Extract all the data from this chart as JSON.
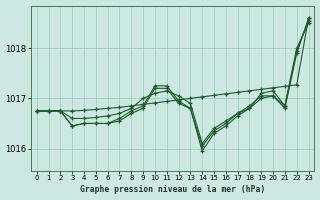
{
  "background_color": "#cce8e0",
  "grid_color": "#99ccbb",
  "line_color": "#1a5c2a",
  "title": "Graphe pression niveau de la mer (hPa)",
  "xlim": [
    -0.5,
    23.5
  ],
  "ylim": [
    1015.55,
    1018.85
  ],
  "yticks": [
    1016,
    1017,
    1018
  ],
  "xticks": [
    0,
    1,
    2,
    3,
    4,
    5,
    6,
    7,
    8,
    9,
    10,
    11,
    12,
    13,
    14,
    15,
    16,
    17,
    18,
    19,
    20,
    21,
    22,
    23
  ],
  "series": [
    [
      1016.75,
      1016.75,
      1016.75,
      1016.45,
      1016.5,
      1016.5,
      1016.5,
      1016.6,
      1016.75,
      1016.85,
      1017.25,
      1017.25,
      1016.95,
      1016.8,
      1016.05,
      1016.35,
      1016.5,
      1016.7,
      1016.85,
      1017.05,
      1017.05,
      1016.85,
      1017.95,
      1018.55
    ],
    [
      1016.75,
      1016.75,
      1016.75,
      1016.45,
      1016.5,
      1016.5,
      1016.5,
      1016.55,
      1016.7,
      1016.8,
      1017.2,
      1017.2,
      1016.9,
      1016.8,
      1015.95,
      1016.3,
      1016.45,
      1016.65,
      1016.8,
      1017.0,
      1017.05,
      1016.8,
      1017.9,
      1018.6
    ],
    [
      1016.75,
      1016.75,
      1016.75,
      1016.6,
      1016.6,
      1016.62,
      1016.65,
      1016.7,
      1016.8,
      1017.0,
      1017.1,
      1017.15,
      1017.05,
      1016.9,
      1016.1,
      1016.4,
      1016.55,
      1016.7,
      1016.8,
      1017.1,
      1017.15,
      1016.85,
      1018.0,
      1018.5
    ],
    [
      1016.75,
      1016.75,
      1016.75,
      1016.75,
      1016.76,
      1016.78,
      1016.8,
      1016.82,
      1016.85,
      1016.88,
      1016.91,
      1016.94,
      1016.97,
      1017.0,
      1017.03,
      1017.06,
      1017.09,
      1017.12,
      1017.15,
      1017.18,
      1017.21,
      1017.24,
      1017.27,
      1018.6
    ]
  ]
}
